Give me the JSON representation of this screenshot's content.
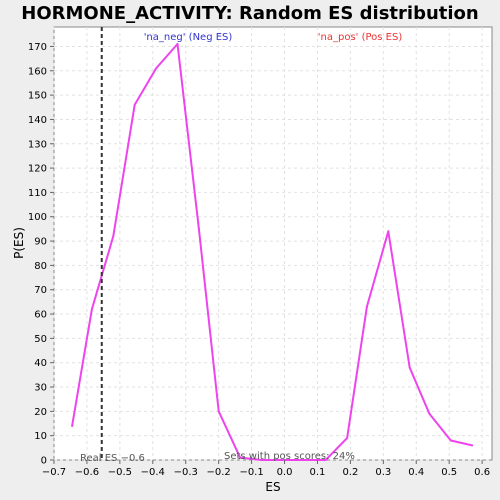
{
  "chart_data": {
    "type": "line",
    "title": "HORMONE_ACTIVITY: Random ES distribution",
    "xlabel": "ES",
    "ylabel": "P(ES)",
    "xlim": [
      -0.7,
      0.63
    ],
    "ylim": [
      0,
      178
    ],
    "x_ticks": [
      -0.7,
      -0.6,
      -0.5,
      -0.4,
      -0.3,
      -0.2,
      -0.1,
      0.0,
      0.1,
      0.2,
      0.3,
      0.4,
      0.5,
      0.6
    ],
    "x_tick_labels": [
      "−0.7",
      "−0.6",
      "−0.5",
      "−0.4",
      "−0.3",
      "−0.2",
      "−0.1",
      "0.0",
      "0.1",
      "0.2",
      "0.3",
      "0.4",
      "0.5",
      "0.6"
    ],
    "y_ticks": [
      0,
      10,
      20,
      30,
      40,
      50,
      60,
      70,
      80,
      90,
      100,
      110,
      120,
      130,
      140,
      150,
      160,
      170
    ],
    "grid": true,
    "series": [
      {
        "color": "#ee44ee",
        "x": [
          -0.645,
          -0.585,
          -0.52,
          -0.455,
          -0.39,
          -0.325,
          -0.26,
          -0.2,
          -0.135,
          -0.07,
          0.0,
          0.06,
          0.125,
          0.19,
          0.25,
          0.315,
          0.38,
          0.44,
          0.505,
          0.57
        ],
        "y": [
          14,
          62,
          92,
          146,
          161,
          171,
          95,
          20,
          1,
          0,
          0,
          0,
          0,
          9,
          63,
          94,
          38,
          19,
          8,
          6
        ]
      }
    ],
    "real_es": -0.555,
    "annotations": {
      "neg_label": "'na_neg' (Neg ES)",
      "pos_label": "'na_pos' (Pos ES)",
      "real_es_label": "Real ES −0.6",
      "pos_scores_label": "Sets with pos scores: 24%"
    },
    "colors": {
      "neg": "#3333cc",
      "pos": "#ee3333",
      "line": "#ee44ee",
      "marker": "#333333"
    }
  }
}
